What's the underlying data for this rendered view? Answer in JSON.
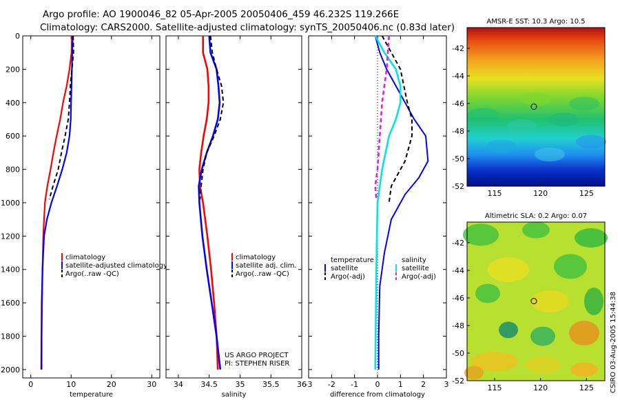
{
  "title_line1": "Argo profile: AO 1900046_82 05-Apr-2005 20050406_459 46.232S 119.266E",
  "title_line2": "Climatology: CARS2000. Satellite-adjusted climatology: synTS_20050406.nc (0.83d later)",
  "watermark": "CSIRO 03-Aug-2005 15:44:38",
  "colors": {
    "climatology": "#ff0000",
    "satellite": "#0000ff",
    "argo": "#000000",
    "temp_diff": "#00e5e5",
    "sal_argo_diff": "#e020e0"
  },
  "chart_data": [
    {
      "type": "line",
      "id": "temperature",
      "xlabel": "temperature",
      "ylabel": "",
      "xlim": [
        -2,
        32
      ],
      "ylim": [
        2050,
        0
      ],
      "xticks": [
        "0",
        "10",
        "20",
        "30"
      ],
      "yticks": [
        "0",
        "200",
        "400",
        "600",
        "800",
        "1000",
        "1200",
        "1400",
        "1600",
        "1800",
        "2000"
      ],
      "legend": {
        "position": "lower-right",
        "entries": [
          "climatology",
          "satellite-adjusted climatology",
          "Argo(..raw -QC)"
        ]
      },
      "series": [
        {
          "name": "climatology",
          "x": [
            10.2,
            10.1,
            9.6,
            8.9,
            8.0,
            7.3,
            6.4,
            5.6,
            4.9,
            4.1,
            3.5,
            3.1,
            2.9,
            2.8,
            2.7,
            2.7
          ],
          "y": [
            0,
            100,
            200,
            300,
            400,
            500,
            600,
            700,
            800,
            900,
            1000,
            1200,
            1400,
            1600,
            1800,
            2000
          ]
        },
        {
          "name": "satellite-adjusted climatology",
          "x": [
            10.4,
            10.3,
            10.2,
            10.1,
            10.0,
            9.9,
            9.6,
            8.9,
            7.8,
            6.5,
            5.1,
            4.0,
            3.3,
            2.9,
            2.7,
            2.6
          ],
          "y": [
            0,
            100,
            200,
            300,
            400,
            500,
            600,
            700,
            800,
            900,
            1000,
            1100,
            1200,
            1400,
            1600,
            2000
          ]
        },
        {
          "name": "Argo(..raw -QC)",
          "x": [
            10.5,
            10.6,
            10.2,
            9.8,
            9.6,
            9.3,
            8.5,
            7.6,
            6.8,
            5.5,
            4.6
          ],
          "y": [
            0,
            100,
            200,
            300,
            400,
            500,
            600,
            700,
            800,
            900,
            980
          ]
        }
      ]
    },
    {
      "type": "line",
      "id": "salinity",
      "xlabel": "salinity",
      "ylabel": "",
      "xlim": [
        33.8,
        36.0
      ],
      "ylim": [
        2050,
        0
      ],
      "xticks": [
        "34",
        "34.5",
        "35",
        "35.5",
        "36"
      ],
      "legend": {
        "position": "lower-right",
        "entries": [
          "climatology",
          "satellite adj. clim.",
          "Argo(..raw -QC)"
        ]
      },
      "annotations": [
        "US ARGO PROJECT",
        "PI: STEPHEN RISER"
      ],
      "series": [
        {
          "name": "climatology",
          "x": [
            34.4,
            34.4,
            34.47,
            34.49,
            34.49,
            34.46,
            34.41,
            34.37,
            34.34,
            34.35,
            34.4,
            34.47,
            34.53,
            34.58,
            34.62,
            34.64
          ],
          "y": [
            0,
            100,
            200,
            300,
            400,
            500,
            600,
            700,
            800,
            900,
            1000,
            1200,
            1400,
            1600,
            1800,
            2000
          ]
        },
        {
          "name": "satellite adj. clim.",
          "x": [
            34.5,
            34.52,
            34.62,
            34.65,
            34.67,
            34.64,
            34.56,
            34.46,
            34.38,
            34.33,
            34.34,
            34.39,
            34.46,
            34.54,
            34.62,
            34.68
          ],
          "y": [
            0,
            100,
            200,
            300,
            400,
            500,
            600,
            700,
            800,
            900,
            1000,
            1200,
            1400,
            1600,
            1800,
            2000
          ]
        },
        {
          "name": "Argo(..raw -QC)",
          "x": [
            34.52,
            34.55,
            34.62,
            34.7,
            34.73,
            34.68,
            34.58,
            34.46,
            34.4,
            34.37,
            34.35
          ],
          "y": [
            0,
            100,
            200,
            300,
            400,
            500,
            600,
            700,
            800,
            900,
            980
          ]
        }
      ]
    },
    {
      "type": "line",
      "id": "difference",
      "xlabel": "difference from climatology",
      "ylabel": "",
      "xlim": [
        -3,
        3
      ],
      "ylim": [
        2050,
        0
      ],
      "xticks": [
        "-3",
        "-2",
        "-1",
        "0",
        "1",
        "2",
        "3"
      ],
      "legend": {
        "position": "lower-right",
        "entries": [
          "temperature",
          "satellite",
          "Argo(-adj)",
          "salinity",
          "satellite",
          "Argo(-adj)"
        ]
      },
      "series": [
        {
          "name": "temperature satellite",
          "x": [
            -0.1,
            0.1,
            0.4,
            0.8,
            1.2,
            1.6,
            2.1,
            2.2,
            1.8,
            1.2,
            0.6,
            0.3,
            0.1,
            0.05,
            0.05
          ],
          "y": [
            0,
            100,
            200,
            300,
            400,
            500,
            600,
            750,
            850,
            950,
            1100,
            1300,
            1500,
            1800,
            2000
          ]
        },
        {
          "name": "temperature Argo(-adj)",
          "x": [
            0.2,
            0.6,
            1.0,
            1.3,
            1.5,
            1.5,
            1.2,
            0.6,
            0.5
          ],
          "y": [
            0,
            100,
            200,
            400,
            500,
            600,
            750,
            900,
            1000
          ]
        },
        {
          "name": "salinity satellite",
          "x": [
            -0.1,
            0.3,
            0.8,
            1.0,
            1.0,
            0.8,
            0.5,
            0.2,
            0.0,
            -0.05,
            -0.1
          ],
          "y": [
            0,
            100,
            200,
            300,
            400,
            500,
            600,
            800,
            1000,
            1400,
            2000
          ]
        },
        {
          "name": "salinity Argo(-adj)",
          "x": [
            0.5,
            0.4,
            0.2,
            0.1,
            0.0,
            -0.1,
            -0.05
          ],
          "y": [
            0,
            200,
            400,
            600,
            800,
            900,
            980
          ]
        }
      ]
    },
    {
      "type": "heatmap",
      "id": "sst_map",
      "title": "AMSR-E SST: 10.3 Argo: 10.5",
      "xlim": [
        112,
        127
      ],
      "ylim": [
        -52,
        -40.5
      ],
      "xticks": [
        "115",
        "120",
        "125"
      ],
      "yticks": [
        "-42",
        "-44",
        "-46",
        "-48",
        "-50",
        "-52"
      ],
      "marker": {
        "lon": 119.27,
        "lat": -46.23
      }
    },
    {
      "type": "heatmap",
      "id": "sla_map",
      "title": "Altimetric SLA: 0.2 Argo: 0.07",
      "xlim": [
        112,
        127
      ],
      "ylim": [
        -52,
        -40.5
      ],
      "xticks": [
        "115",
        "120",
        "125"
      ],
      "yticks": [
        "-42",
        "-44",
        "-46",
        "-48",
        "-50",
        "-52"
      ],
      "marker": {
        "lon": 119.27,
        "lat": -46.23
      }
    }
  ]
}
